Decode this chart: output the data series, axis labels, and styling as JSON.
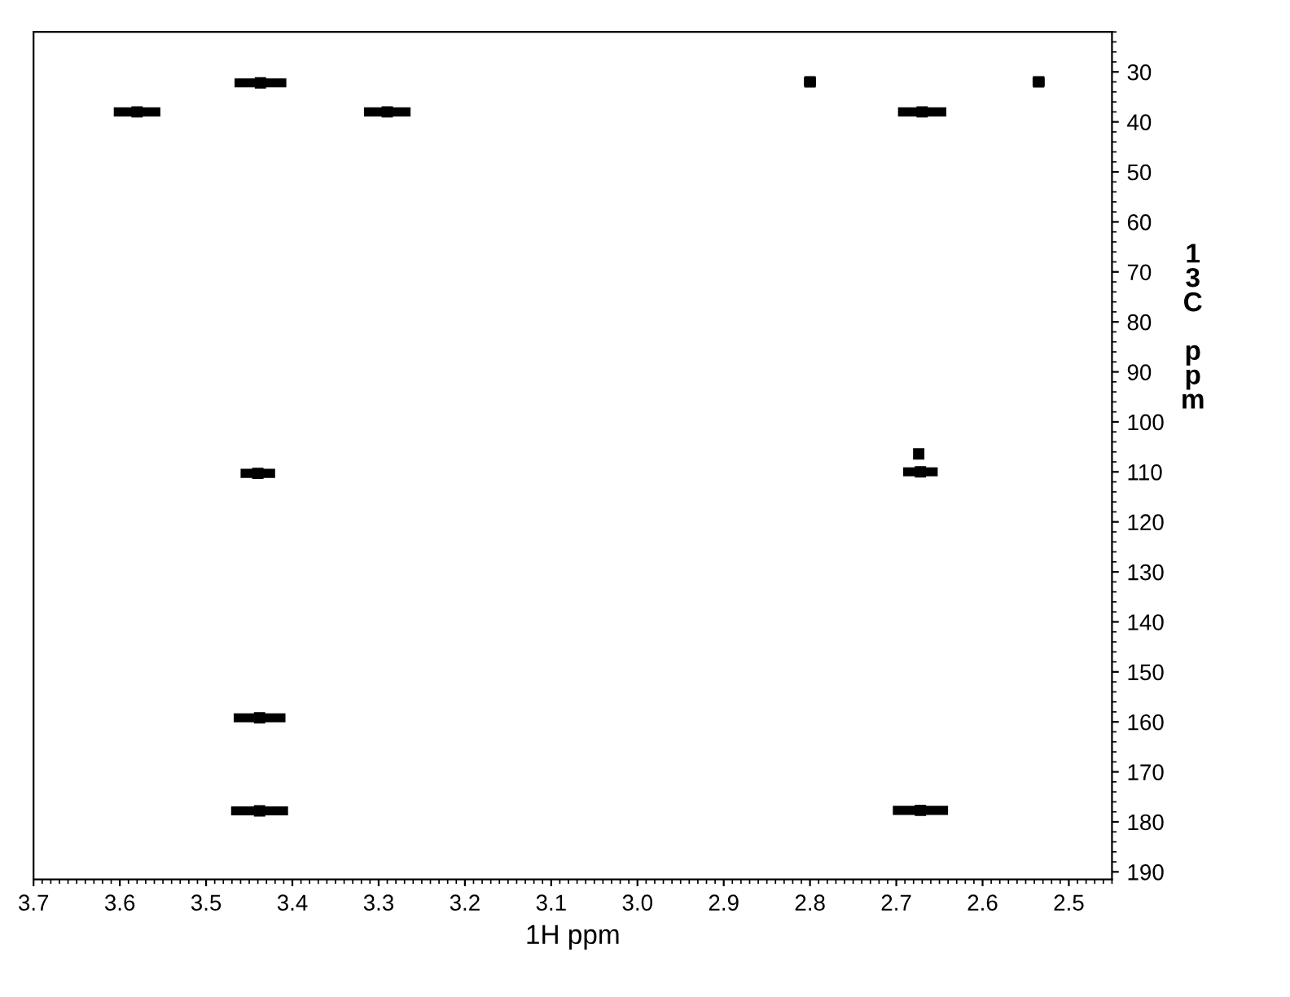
{
  "chart_data": {
    "type": "scatter",
    "xlabel": "1H ppm",
    "ylabel": "13C ppm",
    "series": [
      {
        "color": "#000000",
        "x": [
          3.58,
          3.437,
          3.29,
          2.8,
          2.67,
          2.535,
          3.44,
          2.672,
          2.674,
          3.438,
          3.438,
          2.672
        ],
        "values": [
          38,
          32.2,
          38,
          32,
          38,
          32,
          110.3,
          110,
          106.4,
          159.2,
          177.8,
          177.7
        ],
        "xerrors": [
          0.027,
          0.03,
          0.027,
          0.007,
          0.028,
          0.007,
          0.02,
          0.02,
          0.004,
          0.03,
          0.033,
          0.032
        ]
      }
    ],
    "marker": "square",
    "grid": false,
    "legend": false,
    "xlim": [
      3.7,
      2.45
    ],
    "xticks": [
      {
        "value": 3.7,
        "label": "3.7"
      },
      {
        "value": 3.6,
        "label": "3.6"
      },
      {
        "value": 3.5,
        "label": "3.5"
      },
      {
        "value": 3.4,
        "label": "3.4"
      },
      {
        "value": 3.3,
        "label": "3.3"
      },
      {
        "value": 3.2,
        "label": "3.2"
      },
      {
        "value": 3.1,
        "label": "3.1"
      },
      {
        "value": 3.0,
        "label": "3.0"
      },
      {
        "value": 2.9,
        "label": "2.9"
      },
      {
        "value": 2.8,
        "label": "2.8"
      },
      {
        "value": 2.7,
        "label": "2.7"
      },
      {
        "value": 2.6,
        "label": "2.6"
      },
      {
        "value": 2.5,
        "label": "2.5"
      }
    ],
    "ylim": [
      191.5,
      22
    ],
    "yticks": [
      30,
      40,
      50,
      60,
      70,
      80,
      90,
      100,
      110,
      120,
      130,
      140,
      150,
      160,
      170,
      180,
      190
    ]
  }
}
